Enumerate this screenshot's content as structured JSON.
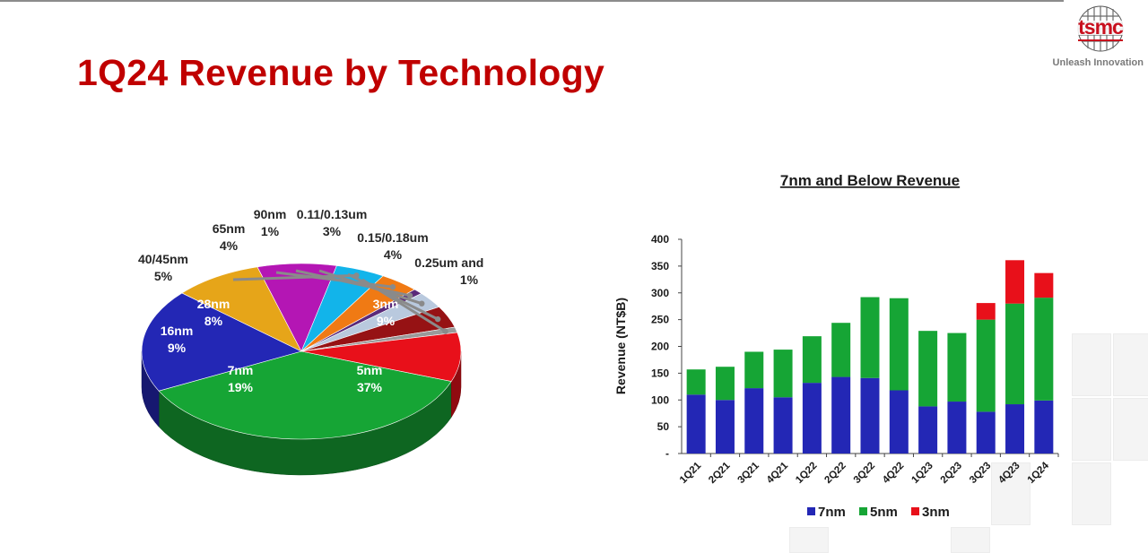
{
  "page": {
    "title": "1Q24 Revenue by Technology",
    "brand": "tsmc",
    "tagline": "Unleash Innovation"
  },
  "chart_data": [
    {
      "type": "pie",
      "title": "",
      "slices": [
        {
          "label": "5nm",
          "value": 37,
          "display": "37%",
          "color": "#16a535"
        },
        {
          "label": "7nm",
          "value": 19,
          "display": "19%",
          "color": "#2327b5"
        },
        {
          "label": "16nm",
          "value": 9,
          "display": "9%",
          "color": "#e6a519"
        },
        {
          "label": "28nm",
          "value": 8,
          "display": "8%",
          "color": "#b416b4"
        },
        {
          "label": "40/45nm",
          "value": 5,
          "display": "5%",
          "color": "#12b4ea"
        },
        {
          "label": "65nm",
          "value": 4,
          "display": "4%",
          "color": "#f07a14"
        },
        {
          "label": "90nm",
          "value": 1,
          "display": "1%",
          "color": "#5a2a7a"
        },
        {
          "label": "0.11/0.13um",
          "value": 3,
          "display": "3%",
          "color": "#b9c9de"
        },
        {
          "label": "0.15/0.18um",
          "value": 4,
          "display": "4%",
          "color": "#961214"
        },
        {
          "label": "0.25um and above",
          "value": 1,
          "display": "1%",
          "color": "#9a9a9a"
        },
        {
          "label": "3nm",
          "value": 9,
          "display": "9%",
          "color": "#e8101a"
        }
      ]
    },
    {
      "type": "bar",
      "stacked": true,
      "title": "7nm and Below Revenue",
      "ylabel": "Revenue (NT$B)",
      "ylim": [
        0,
        400
      ],
      "yticks": [
        "-",
        "50",
        "100",
        "150",
        "200",
        "250",
        "300",
        "350",
        "400"
      ],
      "categories": [
        "1Q21",
        "2Q21",
        "3Q21",
        "4Q21",
        "1Q22",
        "2Q22",
        "3Q22",
        "4Q22",
        "1Q23",
        "2Q23",
        "3Q23",
        "4Q23",
        "1Q24"
      ],
      "series": [
        {
          "name": "7nm",
          "color": "#2327b5",
          "values": [
            110,
            100,
            122,
            105,
            132,
            143,
            141,
            118,
            88,
            97,
            78,
            92,
            99
          ]
        },
        {
          "name": "5nm",
          "color": "#16a535",
          "values": [
            47,
            62,
            68,
            89,
            87,
            101,
            151,
            172,
            141,
            128,
            172,
            188,
            192
          ]
        },
        {
          "name": "3nm",
          "color": "#e8101a",
          "values": [
            0,
            0,
            0,
            0,
            0,
            0,
            0,
            0,
            0,
            0,
            31,
            81,
            46
          ]
        }
      ],
      "legend": "bottom",
      "grid": false
    }
  ]
}
